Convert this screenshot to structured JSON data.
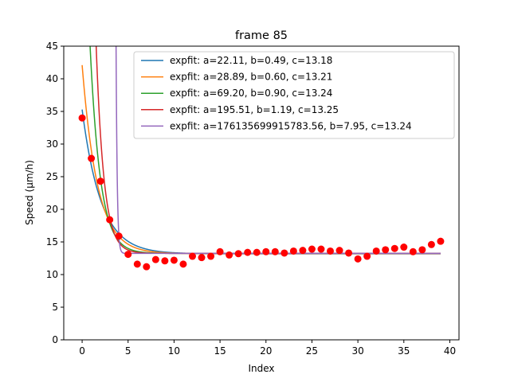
{
  "chart_data": {
    "type": "scatter",
    "title": "frame 85",
    "xlabel": "Index",
    "ylabel": "Speed (μm/h)",
    "xlim": [
      -2,
      41
    ],
    "ylim": [
      0,
      45
    ],
    "xticks": [
      0,
      5,
      10,
      15,
      20,
      25,
      30,
      35,
      40
    ],
    "yticks": [
      0,
      5,
      10,
      15,
      20,
      25,
      30,
      35,
      40,
      45
    ],
    "grid": false,
    "legend_position": "top-right",
    "points": {
      "color": "#ff0000",
      "x": [
        0,
        1,
        2,
        3,
        4,
        5,
        6,
        7,
        8,
        9,
        10,
        11,
        12,
        13,
        14,
        15,
        16,
        17,
        18,
        19,
        20,
        21,
        22,
        23,
        24,
        25,
        26,
        27,
        28,
        29,
        30,
        31,
        32,
        33,
        34,
        35,
        36,
        37,
        38,
        39
      ],
      "y": [
        34.0,
        27.8,
        24.3,
        18.4,
        15.9,
        13.1,
        11.6,
        11.2,
        12.3,
        12.1,
        12.2,
        11.6,
        12.8,
        12.6,
        12.8,
        13.5,
        13.0,
        13.2,
        13.4,
        13.4,
        13.5,
        13.5,
        13.3,
        13.6,
        13.7,
        13.9,
        13.9,
        13.6,
        13.7,
        13.3,
        12.4,
        12.8,
        13.6,
        13.8,
        14.0,
        14.2,
        13.5,
        13.8,
        14.6,
        15.1
      ]
    },
    "series": [
      {
        "name": "expfit: a=22.11, b=0.49, c=13.18",
        "color": "#1f77b4",
        "a": 22.11,
        "b": 0.49,
        "c": 13.18
      },
      {
        "name": "expfit: a=28.89, b=0.60, c=13.21",
        "color": "#ff7f0e",
        "a": 28.89,
        "b": 0.6,
        "c": 13.21
      },
      {
        "name": "expfit: a=69.20, b=0.90, c=13.24",
        "color": "#2ca02c",
        "a": 69.2,
        "b": 0.9,
        "c": 13.24
      },
      {
        "name": "expfit: a=195.51, b=1.19, c=13.25",
        "color": "#d62728",
        "a": 195.51,
        "b": 1.19,
        "c": 13.25
      },
      {
        "name": "expfit: a=176135699915783.56, b=7.95, c=13.24",
        "color": "#9467bd",
        "a": 176135699915783.56,
        "b": 7.95,
        "c": 13.24
      }
    ]
  }
}
